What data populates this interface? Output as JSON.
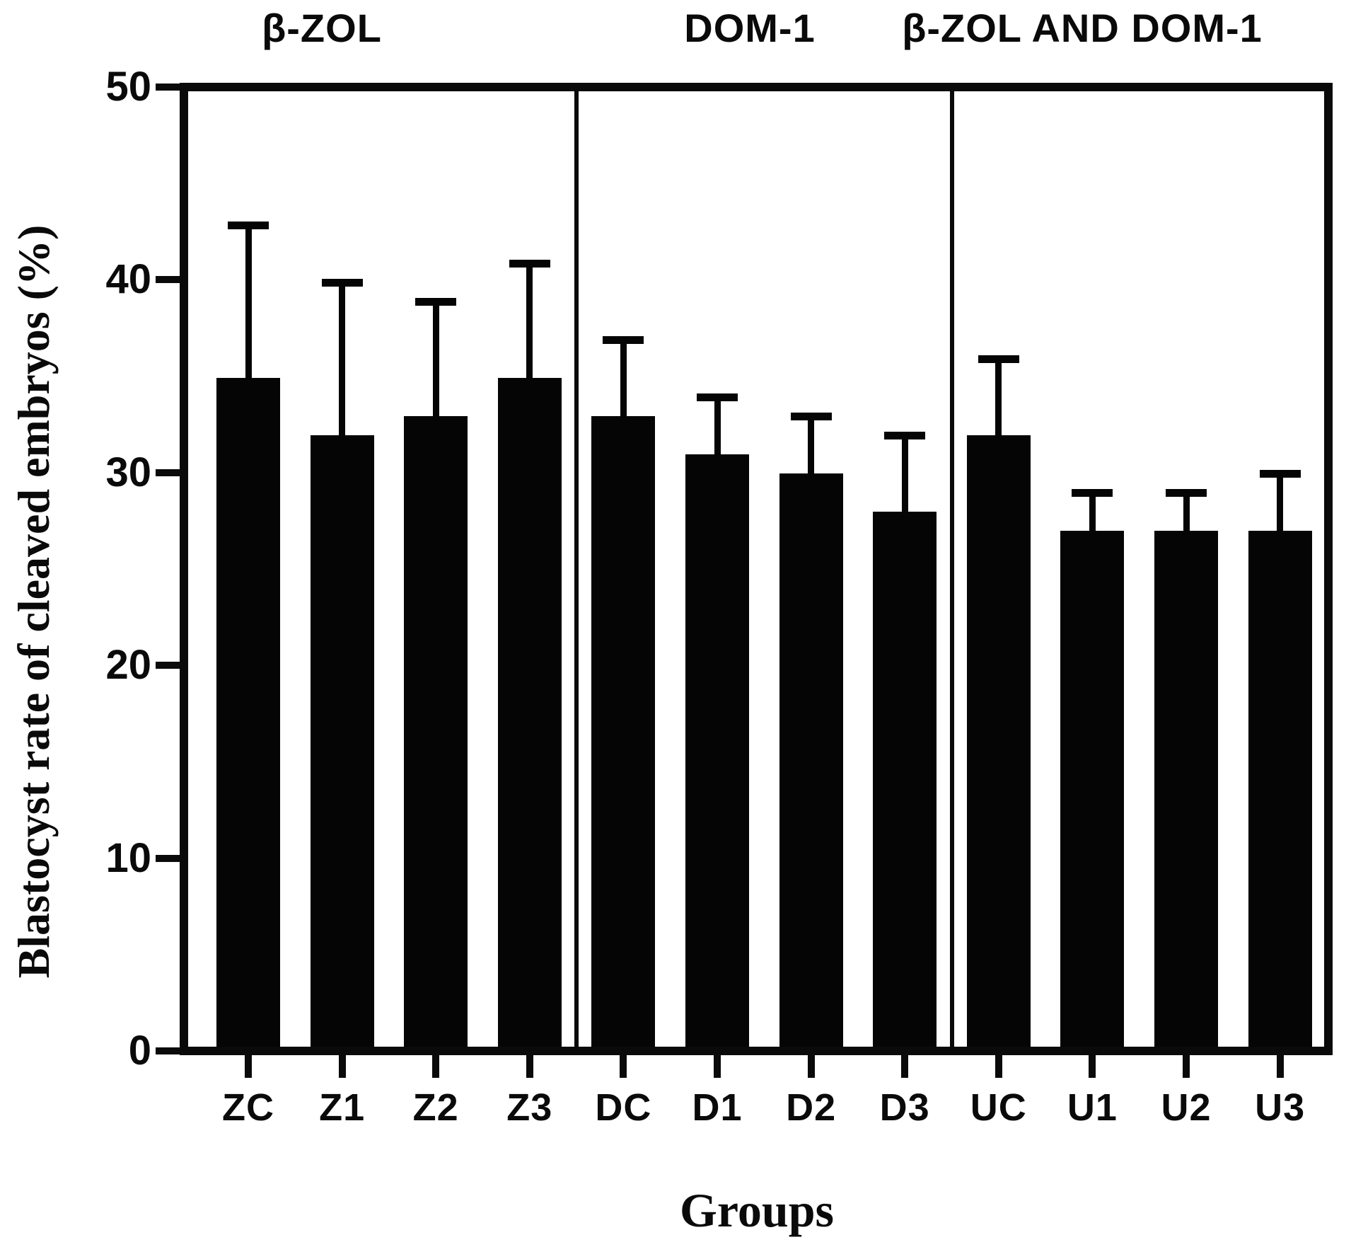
{
  "chart_data": {
    "type": "bar",
    "title": "",
    "xlabel": "Groups",
    "ylabel": "Blastocyst rate of cleaved embryos (%)",
    "ylim": [
      0,
      50
    ],
    "y_ticks": [
      50,
      40,
      30,
      20,
      10,
      0
    ],
    "grid": "off",
    "legend": "none",
    "bar_color": "#050505",
    "background_color": "#ffffff",
    "error_bar_style": "plus-only-sd-caps",
    "panels": [
      {
        "title": "β-ZOL",
        "categories": [
          "ZC",
          "Z1",
          "Z2",
          "Z3"
        ],
        "values": [
          35,
          32,
          33,
          35
        ],
        "error_plus": [
          8,
          8,
          6,
          6
        ]
      },
      {
        "title": "DOM-1",
        "categories": [
          "DC",
          "D1",
          "D2",
          "D3"
        ],
        "values": [
          33,
          31,
          30,
          28
        ],
        "error_plus": [
          4,
          3,
          3,
          4
        ]
      },
      {
        "title": "β-ZOL AND DOM-1",
        "categories": [
          "UC",
          "U1",
          "U2",
          "U3"
        ],
        "values": [
          32,
          27,
          27,
          27
        ],
        "error_plus": [
          4,
          2,
          2,
          3
        ]
      }
    ]
  }
}
